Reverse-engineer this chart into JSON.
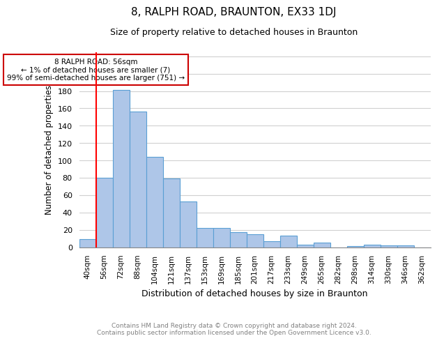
{
  "title": "8, RALPH ROAD, BRAUNTON, EX33 1DJ",
  "subtitle": "Size of property relative to detached houses in Braunton",
  "xlabel": "Distribution of detached houses by size in Braunton",
  "ylabel": "Number of detached properties",
  "footer_line1": "Contains HM Land Registry data © Crown copyright and database right 2024.",
  "footer_line2": "Contains public sector information licensed under the Open Government Licence v3.0.",
  "categories": [
    "40sqm",
    "56sqm",
    "72sqm",
    "88sqm",
    "104sqm",
    "121sqm",
    "137sqm",
    "153sqm",
    "169sqm",
    "185sqm",
    "201sqm",
    "217sqm",
    "233sqm",
    "249sqm",
    "265sqm",
    "282sqm",
    "298sqm",
    "314sqm",
    "330sqm",
    "346sqm",
    "362sqm"
  ],
  "values": [
    9,
    80,
    181,
    156,
    104,
    79,
    53,
    22,
    22,
    17,
    15,
    7,
    13,
    3,
    5,
    0,
    1,
    3,
    2,
    2,
    0
  ],
  "bar_color": "#aec6e8",
  "bar_edge_color": "#5a9fd4",
  "red_line_index": 1,
  "annotation_text": "8 RALPH ROAD: 56sqm\n← 1% of detached houses are smaller (7)\n99% of semi-detached houses are larger (751) →",
  "annotation_box_color": "#ffffff",
  "annotation_border_color": "#cc0000",
  "ylim": [
    0,
    225
  ],
  "yticks": [
    0,
    20,
    40,
    60,
    80,
    100,
    120,
    140,
    160,
    180,
    200,
    220
  ],
  "background_color": "#ffffff",
  "grid_color": "#d0d0d0"
}
